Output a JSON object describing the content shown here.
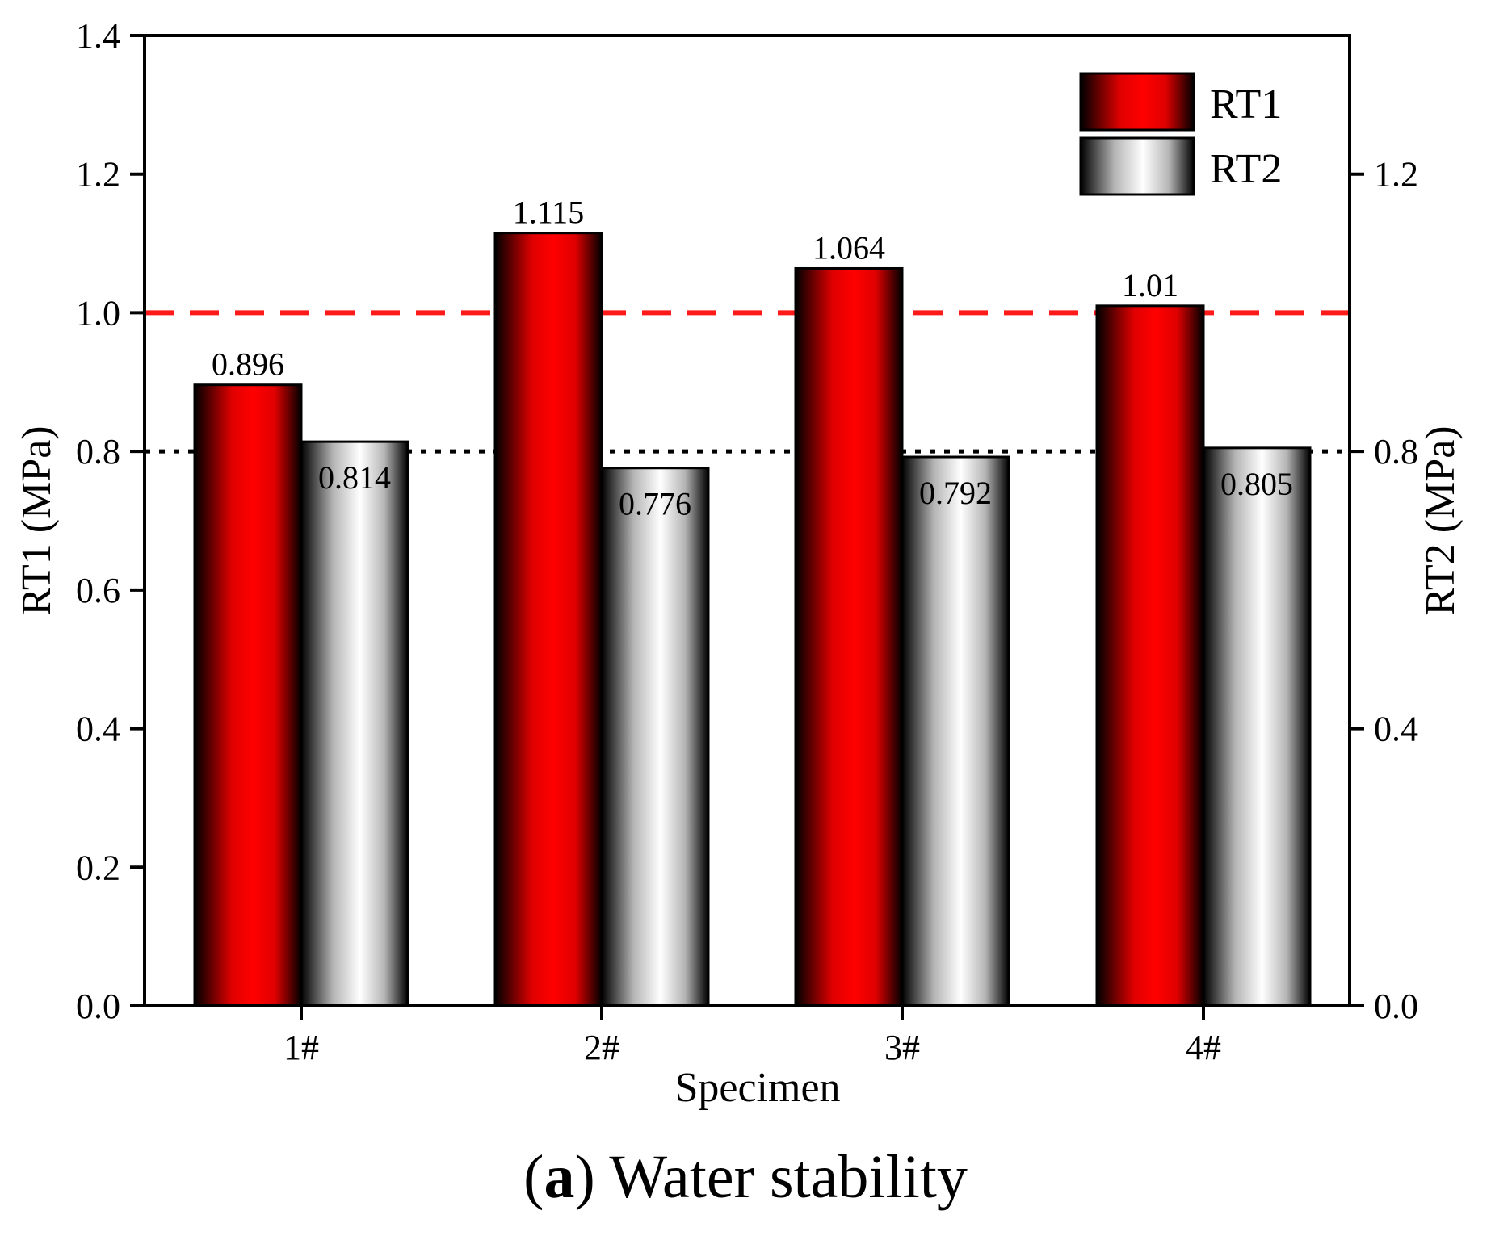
{
  "chart_data": {
    "type": "bar",
    "categories": [
      "1#",
      "2#",
      "3#",
      "4#"
    ],
    "series": [
      {
        "name": "RT1",
        "axis": "left",
        "values": [
          0.896,
          1.115,
          1.064,
          1.01
        ],
        "labels": [
          "0.896",
          "1.115",
          "1.064",
          "1.01"
        ],
        "color": "#ff0000"
      },
      {
        "name": "RT2",
        "axis": "right",
        "values": [
          0.814,
          0.776,
          0.792,
          0.805
        ],
        "labels": [
          "0.814",
          "0.776",
          "0.792",
          "0.805"
        ],
        "color": "#ffffff"
      }
    ],
    "xlabel": "Specimen",
    "ylabel": "RT1 (MPa)",
    "y2label": "RT2 (MPa)",
    "ylim": [
      0,
      1.4
    ],
    "y2lim": [
      0,
      1.4
    ],
    "yticks": [
      "0.0",
      "0.2",
      "0.4",
      "0.6",
      "0.8",
      "1.0",
      "1.2",
      "1.4"
    ],
    "y2ticks": [
      "0.0",
      "0.4",
      "0.8",
      "1.2"
    ],
    "reference_lines": [
      {
        "value": 1.0,
        "style": "dashed",
        "color": "#ff1a1a"
      },
      {
        "value": 0.8,
        "style": "dotted",
        "color": "#000000"
      }
    ],
    "legend": {
      "position": "top-right",
      "entries": [
        "RT1",
        "RT2"
      ]
    },
    "caption": {
      "letter": "a",
      "text": "Water stability"
    }
  }
}
